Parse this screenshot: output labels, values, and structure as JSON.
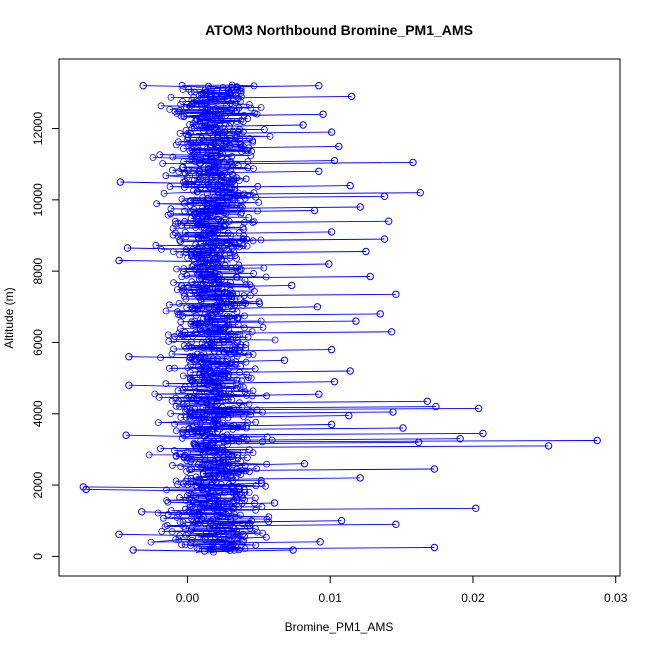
{
  "chart_data": {
    "type": "line",
    "title": "ATOM3 Northbound Bromine_PM1_AMS",
    "xlabel": "Bromine_PM1_AMS",
    "ylabel": "Altitude (m)",
    "xlim": [
      -0.009,
      0.0303
    ],
    "ylim": [
      -550,
      13950
    ],
    "x_ticks": [
      0.0,
      0.01,
      0.02,
      0.03
    ],
    "x_tick_labels": [
      "0.00",
      "0.01",
      "0.02",
      "0.03"
    ],
    "y_ticks": [
      0,
      2000,
      4000,
      6000,
      8000,
      10000,
      12000
    ],
    "y_tick_labels": [
      "0",
      "2000",
      "4000",
      "6000",
      "8000",
      "10000",
      "12000"
    ],
    "grid": false,
    "legend": "none",
    "series": [
      {
        "style": "points-and-lines",
        "color": "#0000ff",
        "points": [
          [
            0.0012,
            150
          ],
          [
            0.0074,
            180
          ],
          [
            0.0173,
            250
          ],
          [
            0.0031,
            320
          ],
          [
            -0.0038,
            180
          ],
          [
            0.0093,
            410
          ],
          [
            -0.0048,
            620
          ],
          [
            0.0024,
            700
          ],
          [
            0.0146,
            900
          ],
          [
            0.0108,
            1000
          ],
          [
            0.0011,
            1100
          ],
          [
            -0.0032,
            1250
          ],
          [
            0.0202,
            1350
          ],
          [
            0.0061,
            1500
          ],
          [
            -0.0073,
            1950
          ],
          [
            -0.0071,
            1880
          ],
          [
            0.0052,
            2050
          ],
          [
            0.0121,
            2200
          ],
          [
            0.0173,
            2450
          ],
          [
            0.0082,
            2600
          ],
          [
            0.0031,
            2800
          ],
          [
            0.0253,
            3100
          ],
          [
            0.0287,
            3250
          ],
          [
            0.0162,
            3200
          ],
          [
            0.0191,
            3300
          ],
          [
            -0.0043,
            3400
          ],
          [
            0.0207,
            3450
          ],
          [
            0.0151,
            3600
          ],
          [
            0.0101,
            3700
          ],
          [
            0.0113,
            3950
          ],
          [
            0.0204,
            4150
          ],
          [
            0.0144,
            4050
          ],
          [
            0.0174,
            4200
          ],
          [
            0.0168,
            4350
          ],
          [
            0.0092,
            4550
          ],
          [
            -0.0041,
            4800
          ],
          [
            0.0103,
            4900
          ],
          [
            0.0114,
            5200
          ],
          [
            0.0068,
            5500
          ],
          [
            -0.0041,
            5600
          ],
          [
            0.0101,
            5800
          ],
          [
            0.0143,
            6300
          ],
          [
            0.0118,
            6600
          ],
          [
            0.0135,
            6800
          ],
          [
            0.0091,
            7000
          ],
          [
            0.0146,
            7350
          ],
          [
            0.0073,
            7600
          ],
          [
            0.0128,
            7850
          ],
          [
            0.0099,
            8200
          ],
          [
            -0.0048,
            8300
          ],
          [
            0.0125,
            8550
          ],
          [
            -0.0042,
            8650
          ],
          [
            0.0138,
            8900
          ],
          [
            0.0101,
            9100
          ],
          [
            0.0141,
            9400
          ],
          [
            0.0089,
            9700
          ],
          [
            0.0121,
            9800
          ],
          [
            0.0138,
            10100
          ],
          [
            0.0163,
            10200
          ],
          [
            0.0114,
            10400
          ],
          [
            -0.0047,
            10500
          ],
          [
            0.0092,
            10800
          ],
          [
            0.0158,
            11050
          ],
          [
            0.0103,
            11100
          ],
          [
            0.0106,
            11500
          ],
          [
            0.0101,
            11900
          ],
          [
            0.0081,
            12100
          ],
          [
            0.0095,
            12400
          ],
          [
            0.0115,
            12900
          ],
          [
            -0.0031,
            13200
          ],
          [
            0.0092,
            13200
          ],
          [
            0.0035,
            13150
          ]
        ]
      }
    ]
  }
}
